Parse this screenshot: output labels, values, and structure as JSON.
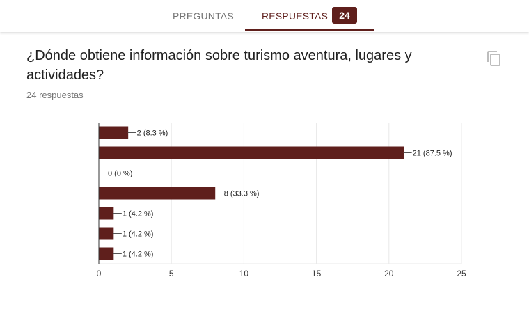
{
  "tabs": [
    {
      "label": "PREGUNTAS"
    },
    {
      "label": "RESPUESTAS"
    }
  ],
  "response_badge": "24",
  "question": {
    "title": "¿Dónde obtiene información sobre turismo aventura, lugares y actividades?",
    "responses_label": "24 respuestas"
  },
  "icons": {
    "copy": "copy-icon"
  },
  "colors": {
    "bar": "#5f1f1c",
    "accent": "#5f1f1c"
  },
  "chart_data": {
    "type": "bar",
    "orientation": "horizontal",
    "categories": [
      "",
      "",
      "",
      "",
      "",
      "",
      ""
    ],
    "values": [
      2,
      21,
      0,
      8,
      1,
      1,
      1
    ],
    "labels": [
      "2 (8.3 %)",
      "21 (87.5 %)",
      "0 (0 %)",
      "8 (33.3 %)",
      "1 (4.2 %)",
      "1 (4.2 %)",
      "1 (4.2 %)"
    ],
    "xlim": [
      0,
      25
    ],
    "xticks": [
      0,
      5,
      10,
      15,
      20,
      25
    ],
    "grid": true,
    "title": "",
    "xlabel": "",
    "ylabel": ""
  }
}
